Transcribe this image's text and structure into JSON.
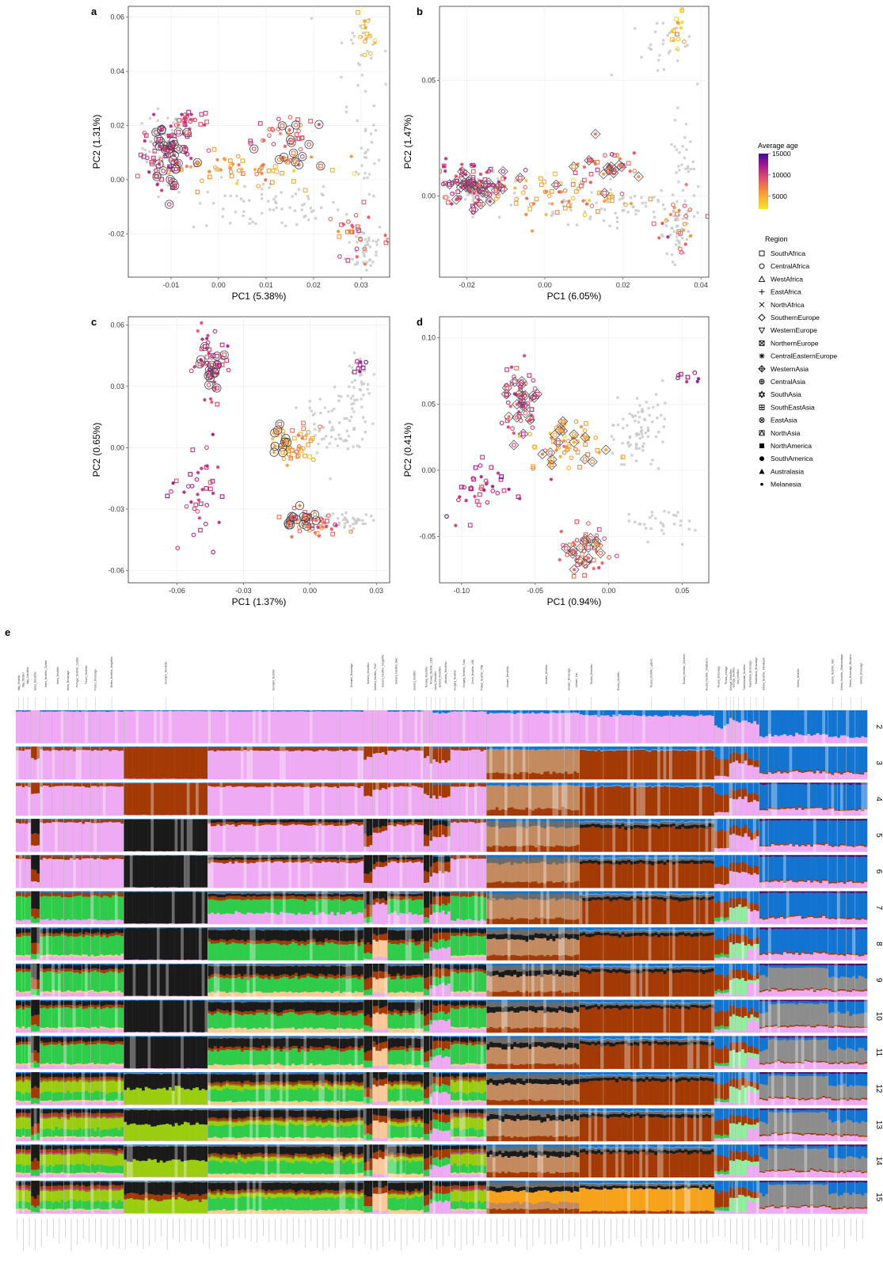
{
  "colors": {
    "age_low": "#f5e52a",
    "age_mid": "#e8704a",
    "age_high": "#c0267a",
    "age_max": "#3b0f9c",
    "reference": "#c8c8c8"
  },
  "chart_data": [
    {
      "type": "scatter",
      "panel": "a",
      "xlabel": "PC1 (5.38%)",
      "ylabel": "PC2 (1.31%)",
      "xlim": [
        -0.019,
        0.036
      ],
      "ylim": [
        -0.036,
        0.064
      ],
      "xticks": [
        -0.01,
        0.0,
        0.01,
        0.02,
        0.03
      ],
      "xtick_labels": [
        "-0.01",
        "0.00",
        "0.01",
        "0.02",
        "0.03"
      ],
      "yticks": [
        -0.02,
        0.0,
        0.02,
        0.04,
        0.06
      ],
      "ytick_labels": [
        "-0.02",
        "0.00",
        "0.02",
        "0.04",
        "0.06"
      ],
      "clusters": [
        {
          "kind": "ref",
          "x": -0.012,
          "y": 0.012,
          "sx": 0.002,
          "sy": 0.007,
          "n": 60
        },
        {
          "kind": "ref",
          "x": 0.01,
          "y": -0.01,
          "sx": 0.008,
          "sy": 0.005,
          "n": 70
        },
        {
          "kind": "ref",
          "x": 0.031,
          "y": -0.025,
          "sx": 0.002,
          "sy": 0.005,
          "n": 40
        },
        {
          "kind": "ref",
          "x": 0.03,
          "y": 0.048,
          "sx": 0.003,
          "sy": 0.01,
          "n": 30
        },
        {
          "kind": "ref",
          "x": 0.031,
          "y": 0.01,
          "sx": 0.001,
          "sy": 0.01,
          "n": 25
        },
        {
          "kind": "ancient",
          "x": -0.011,
          "y": 0.01,
          "sx": 0.0025,
          "sy": 0.007,
          "n": 60,
          "age": 9000
        },
        {
          "kind": "ancient",
          "x": -0.006,
          "y": 0.022,
          "sx": 0.002,
          "sy": 0.002,
          "n": 25,
          "age": 8000
        },
        {
          "kind": "ancient",
          "x": 0.004,
          "y": 0.004,
          "sx": 0.008,
          "sy": 0.003,
          "n": 60,
          "age": 4000
        },
        {
          "kind": "ancient",
          "x": 0.014,
          "y": 0.015,
          "sx": 0.004,
          "sy": 0.005,
          "n": 30,
          "age": 6500
        },
        {
          "kind": "ancient",
          "x": 0.029,
          "y": -0.02,
          "sx": 0.003,
          "sy": 0.005,
          "n": 30,
          "age": 6000
        },
        {
          "kind": "ancient",
          "x": 0.031,
          "y": 0.056,
          "sx": 0.001,
          "sy": 0.005,
          "n": 15,
          "age": 2000
        },
        {
          "kind": "circled",
          "x": -0.01,
          "y": 0.008,
          "sx": 0.002,
          "sy": 0.006,
          "n": 30,
          "age": 8500
        },
        {
          "kind": "circled",
          "x": 0.014,
          "y": 0.013,
          "sx": 0.004,
          "sy": 0.004,
          "n": 15,
          "age": 6000
        }
      ]
    },
    {
      "type": "scatter",
      "panel": "b",
      "xlabel": "PC1 (6.05%)",
      "ylabel": "PC2 (1.47%)",
      "xlim": [
        -0.027,
        0.042
      ],
      "ylim": [
        -0.035,
        0.082
      ],
      "xticks": [
        -0.02,
        0.0,
        0.02,
        0.04
      ],
      "xtick_labels": [
        "-0.02",
        "0.00",
        "0.02",
        "0.04"
      ],
      "yticks": [
        0.0,
        0.05
      ],
      "ytick_labels": [
        "0.00",
        "0.05"
      ],
      "clusters": [
        {
          "kind": "ref",
          "x": -0.017,
          "y": 0.002,
          "sx": 0.004,
          "sy": 0.004,
          "n": 60
        },
        {
          "kind": "ref",
          "x": 0.02,
          "y": -0.005,
          "sx": 0.01,
          "sy": 0.006,
          "n": 70
        },
        {
          "kind": "ref",
          "x": 0.034,
          "y": -0.015,
          "sx": 0.002,
          "sy": 0.006,
          "n": 40
        },
        {
          "kind": "ref",
          "x": 0.03,
          "y": 0.065,
          "sx": 0.004,
          "sy": 0.007,
          "n": 30
        },
        {
          "kind": "ref",
          "x": 0.035,
          "y": 0.02,
          "sx": 0.002,
          "sy": 0.008,
          "n": 25
        },
        {
          "kind": "ancient",
          "x": -0.019,
          "y": 0.005,
          "sx": 0.004,
          "sy": 0.005,
          "n": 70,
          "age": 8500
        },
        {
          "kind": "ancient",
          "x": 0.005,
          "y": 0.0,
          "sx": 0.01,
          "sy": 0.004,
          "n": 60,
          "age": 4000
        },
        {
          "kind": "ancient",
          "x": 0.015,
          "y": 0.012,
          "sx": 0.005,
          "sy": 0.005,
          "n": 30,
          "age": 6500
        },
        {
          "kind": "ancient",
          "x": 0.035,
          "y": -0.01,
          "sx": 0.003,
          "sy": 0.006,
          "n": 25,
          "age": 6000
        },
        {
          "kind": "ancient",
          "x": 0.034,
          "y": 0.072,
          "sx": 0.001,
          "sy": 0.005,
          "n": 15,
          "age": 2000
        },
        {
          "kind": "diamond",
          "x": -0.018,
          "y": 0.004,
          "sx": 0.004,
          "sy": 0.004,
          "n": 30,
          "age": 8500
        },
        {
          "kind": "diamond",
          "x": 0.015,
          "y": 0.012,
          "sx": 0.005,
          "sy": 0.005,
          "n": 14,
          "age": 6000
        }
      ]
    },
    {
      "type": "scatter",
      "panel": "c",
      "xlabel": "PC1 (1.37%)",
      "ylabel": "PC2 (0.65%)",
      "xlim": [
        -0.082,
        0.036
      ],
      "ylim": [
        -0.066,
        0.064
      ],
      "xticks": [
        -0.06,
        -0.03,
        0.0,
        0.03
      ],
      "xtick_labels": [
        "-0.06",
        "-0.03",
        "0.00",
        "0.03"
      ],
      "yticks": [
        -0.06,
        -0.03,
        0.0,
        0.03,
        0.06
      ],
      "ytick_labels": [
        "-0.06",
        "-0.03",
        "0.00",
        "0.03",
        "0.06"
      ],
      "clusters": [
        {
          "kind": "ref",
          "x": 0.012,
          "y": 0.01,
          "sx": 0.008,
          "sy": 0.008,
          "n": 70
        },
        {
          "kind": "ref",
          "x": 0.015,
          "y": -0.035,
          "sx": 0.007,
          "sy": 0.003,
          "n": 40
        },
        {
          "kind": "ref",
          "x": 0.02,
          "y": 0.03,
          "sx": 0.004,
          "sy": 0.006,
          "n": 30
        },
        {
          "kind": "ancient",
          "x": -0.045,
          "y": 0.04,
          "sx": 0.004,
          "sy": 0.008,
          "n": 40,
          "age": 8000
        },
        {
          "kind": "ancient",
          "x": -0.05,
          "y": -0.02,
          "sx": 0.006,
          "sy": 0.012,
          "n": 40,
          "age": 9000
        },
        {
          "kind": "ancient",
          "x": -0.008,
          "y": 0.002,
          "sx": 0.005,
          "sy": 0.004,
          "n": 50,
          "age": 4000
        },
        {
          "kind": "ancient",
          "x": 0.002,
          "y": -0.037,
          "sx": 0.006,
          "sy": 0.003,
          "n": 40,
          "age": 6500
        },
        {
          "kind": "ancient",
          "x": 0.022,
          "y": 0.04,
          "sx": 0.002,
          "sy": 0.002,
          "n": 8,
          "age": 11000
        },
        {
          "kind": "circled",
          "x": -0.045,
          "y": 0.04,
          "sx": 0.003,
          "sy": 0.006,
          "n": 15,
          "age": 8500
        },
        {
          "kind": "circled",
          "x": -0.005,
          "y": -0.036,
          "sx": 0.005,
          "sy": 0.003,
          "n": 15,
          "age": 6000
        },
        {
          "kind": "circled",
          "x": -0.012,
          "y": 0.002,
          "sx": 0.003,
          "sy": 0.004,
          "n": 10,
          "age": 5000
        }
      ]
    },
    {
      "type": "scatter",
      "panel": "d",
      "xlabel": "PC1 (0.94%)",
      "ylabel": "PC2 (0.41%)",
      "xlim": [
        -0.115,
        0.068
      ],
      "ylim": [
        -0.085,
        0.116
      ],
      "xticks": [
        -0.1,
        -0.05,
        0.0,
        0.05
      ],
      "xtick_labels": [
        "-0.10",
        "-0.05",
        "0.00",
        "0.05"
      ],
      "yticks": [
        -0.05,
        0.0,
        0.05,
        0.1
      ],
      "ytick_labels": [
        "-0.05",
        "0.00",
        "0.05",
        "0.10"
      ],
      "clusters": [
        {
          "kind": "ref",
          "x": 0.02,
          "y": 0.03,
          "sx": 0.012,
          "sy": 0.015,
          "n": 80
        },
        {
          "kind": "ref",
          "x": 0.035,
          "y": -0.04,
          "sx": 0.008,
          "sy": 0.008,
          "n": 30
        },
        {
          "kind": "ancient",
          "x": -0.06,
          "y": 0.05,
          "sx": 0.006,
          "sy": 0.015,
          "n": 40,
          "age": 8500
        },
        {
          "kind": "ancient",
          "x": -0.085,
          "y": -0.015,
          "sx": 0.012,
          "sy": 0.01,
          "n": 40,
          "age": 9500
        },
        {
          "kind": "ancient",
          "x": -0.03,
          "y": 0.02,
          "sx": 0.012,
          "sy": 0.01,
          "n": 50,
          "age": 4000
        },
        {
          "kind": "ancient",
          "x": -0.015,
          "y": -0.06,
          "sx": 0.01,
          "sy": 0.01,
          "n": 40,
          "age": 6500
        },
        {
          "kind": "ancient",
          "x": 0.05,
          "y": 0.07,
          "sx": 0.006,
          "sy": 0.003,
          "n": 8,
          "age": 11000
        },
        {
          "kind": "diamond",
          "x": -0.06,
          "y": 0.05,
          "sx": 0.005,
          "sy": 0.012,
          "n": 20,
          "age": 8000
        },
        {
          "kind": "diamond",
          "x": -0.015,
          "y": -0.06,
          "sx": 0.008,
          "sy": 0.008,
          "n": 15,
          "age": 6000
        },
        {
          "kind": "diamond",
          "x": -0.035,
          "y": 0.02,
          "sx": 0.01,
          "sy": 0.008,
          "n": 15,
          "age": 4500
        }
      ]
    }
  ],
  "legend": {
    "age_title": "Average age",
    "age_ticks": [
      15000,
      10000,
      5000
    ],
    "age_tick_labels": [
      "15000",
      "10000",
      "5000"
    ],
    "region_title": "Region",
    "regions": [
      {
        "label": "SouthAfrica",
        "shape": "square"
      },
      {
        "label": "CentralAfrica",
        "shape": "circle"
      },
      {
        "label": "WestAfrica",
        "shape": "triangle"
      },
      {
        "label": "EastAfrica",
        "shape": "plus"
      },
      {
        "label": "NorthAfrica",
        "shape": "cross"
      },
      {
        "label": "SouthernEurope",
        "shape": "diamond"
      },
      {
        "label": "WesternEurope",
        "shape": "triangle-down"
      },
      {
        "label": "NorthernEurope",
        "shape": "square-x"
      },
      {
        "label": "CentralEasternEurope",
        "shape": "asterisk"
      },
      {
        "label": "WesternAsia",
        "shape": "diamond-plus"
      },
      {
        "label": "CentralAsia",
        "shape": "circle-plus"
      },
      {
        "label": "SouthAsia",
        "shape": "star-of-david"
      },
      {
        "label": "SouthEastAsia",
        "shape": "square-plus"
      },
      {
        "label": "EastAsia",
        "shape": "circle-x"
      },
      {
        "label": "NorthAsia",
        "shape": "square-triangle"
      },
      {
        "label": "NorthAmerica",
        "shape": "filled-square"
      },
      {
        "label": "SouthAmerica",
        "shape": "filled-circle"
      },
      {
        "label": "Australasia",
        "shape": "filled-triangle"
      },
      {
        "label": "Melanesia",
        "shape": "small-filled-circle"
      }
    ]
  },
  "admixture": {
    "panel": "e",
    "k_values": [
      "2",
      "3",
      "4",
      "5",
      "6",
      "7",
      "8",
      "9",
      "10",
      "11",
      "12",
      "13",
      "14",
      "15"
    ],
    "components": {
      "pink": "#eeaaf2",
      "brown": "#a33a06",
      "blue": "#1274d0",
      "lightblue": "#5ba7e8",
      "black": "#1a1a1a",
      "darkgray": "#6b6b6b",
      "gray": "#8d8d8d",
      "green": "#2ecc4a",
      "lightgreen": "#90ee9e",
      "peach": "#fcc99a",
      "tan": "#c38a60",
      "lime": "#9acd10",
      "olive": "#8a7d0d",
      "purple": "#4a0a6a",
      "magenta": "#c0148c",
      "orange": "#f7a21b"
    },
    "groups": [
      {
        "label": "Italy_Neolithic",
        "n": 2,
        "pop": "med"
      },
      {
        "label": "Italy_Ötztaler",
        "n": 1,
        "pop": "med"
      },
      {
        "label": "Italy_Calcolithic",
        "n": 2,
        "pop": "med"
      },
      {
        "label": "Iberia_Mesolithic",
        "n": 3,
        "pop": "wh"
      },
      {
        "label": "Iberia_Neolithic_Cardial",
        "n": 4,
        "pop": "med"
      },
      {
        "label": "Iberia_Neolithic",
        "n": 4,
        "pop": "med"
      },
      {
        "label": "Iberia_Bronzeage",
        "n": 3,
        "pop": "med"
      },
      {
        "label": "Portugal_Neolithic_Cardial",
        "n": 3,
        "pop": "med"
      },
      {
        "label": "France_Neolithic",
        "n": 3,
        "pop": "med"
      },
      {
        "label": "France_Bronzeage",
        "n": 3,
        "pop": "med"
      },
      {
        "label": "Britain_Neolithic_Megalithic",
        "n": 8,
        "pop": "med"
      },
      {
        "label": "Denmark_Mesolithic",
        "n": 28,
        "pop": "dm"
      },
      {
        "label": "Denmark_Neolithic",
        "n": 44,
        "pop": "dn"
      },
      {
        "label": "Denmark_Bronzeage",
        "n": 8,
        "pop": "dn"
      },
      {
        "label": "Sweden_Mesolithic",
        "n": 3,
        "pop": "wh"
      },
      {
        "label": "Sweden_Neolithic_PWC",
        "n": 2,
        "pop": "pwc"
      },
      {
        "label": "Sweden_Neolithic_Megalithic",
        "n": 3,
        "pop": "pwc"
      },
      {
        "label": "Sweden_Neolithic_BAC",
        "n": 6,
        "pop": "dn"
      },
      {
        "label": "Sweden_Neolithic",
        "n": 6,
        "pop": "dn"
      },
      {
        "label": "Norway_Mesolithic",
        "n": 2,
        "pop": "wh"
      },
      {
        "label": "Norway_Neolithic_CWC",
        "n": 1,
        "pop": "cwc"
      },
      {
        "label": "Latvia_Mesolithic",
        "n": 2,
        "pop": "eh"
      },
      {
        "label": "Estonia_Mesolithic",
        "n": 1,
        "pop": "eh"
      },
      {
        "label": "Lithuania_Mesolithic",
        "n": 3,
        "pop": "eh"
      },
      {
        "label": "Hungary_Neolithic",
        "n": 3,
        "pop": "med"
      },
      {
        "label": "Hungary_Neolithic_Tisza",
        "n": 3,
        "pop": "med"
      },
      {
        "label": "Czech_Neolithic_LBK",
        "n": 3,
        "pop": "med"
      },
      {
        "label": "Poland_Neolithic_TRB",
        "n": 3,
        "pop": "med"
      },
      {
        "label": "Ukraine_Mesolithic",
        "n": 14,
        "pop": "ukr"
      },
      {
        "label": "Ukraine_Neolithic",
        "n": 12,
        "pop": "ukr"
      },
      {
        "label": "Ukraine_Bronzeage",
        "n": 3,
        "pop": "ukr"
      },
      {
        "label": "Ukraine_Iron",
        "n": 2,
        "pop": "ukr"
      },
      {
        "label": "Russia_Mesolithic",
        "n": 8,
        "pop": "rus"
      },
      {
        "label": "Russia_Neolithic",
        "n": 10,
        "pop": "rus"
      },
      {
        "label": "Russia_Neolithic_Lyalovo",
        "n": 12,
        "pop": "rus"
      },
      {
        "label": "Russia_Neolithic_Volosovo",
        "n": 10,
        "pop": "rus"
      },
      {
        "label": "Russia_Neolithic_MiddleDon",
        "n": 5,
        "pop": "rus"
      },
      {
        "label": "Russia_Bronzeage",
        "n": 3,
        "pop": "rus2"
      },
      {
        "label": "Russia_Ironage",
        "n": 2,
        "pop": "rus2"
      },
      {
        "label": "Georgia_Mesolithic",
        "n": 1,
        "pop": "cauc"
      },
      {
        "label": "Georgia_Neolithic",
        "n": 1,
        "pop": "cauc"
      },
      {
        "label": "Iran_Neolithic",
        "n": 2,
        "pop": "cauc"
      },
      {
        "label": "Turkmenistan_Neolithic",
        "n": 2,
        "pop": "cauc"
      },
      {
        "label": "Kazakhstan_Bronzeage",
        "n": 2,
        "pop": "steppe"
      },
      {
        "label": "Kazakhstan_Bronzeage",
        "n": 2,
        "pop": "steppe"
      },
      {
        "label": "Siberia_Neolithic_Kinnikharin",
        "n": 3,
        "pop": "sib"
      },
      {
        "label": "Siberia_Neolithic",
        "n": 20,
        "pop": "sibn"
      },
      {
        "label": "Siberia_Neolithic_Kitoi",
        "n": 3,
        "pop": "sib"
      },
      {
        "label": "Siberia_Neolithic_Glazkovskaya",
        "n": 3,
        "pop": "sib"
      },
      {
        "label": "Siberia_Bronzeage_Okunevo",
        "n": 3,
        "pop": "sib"
      },
      {
        "label": "Siberia_Bronzeage",
        "n": 4,
        "pop": "sib"
      }
    ]
  }
}
